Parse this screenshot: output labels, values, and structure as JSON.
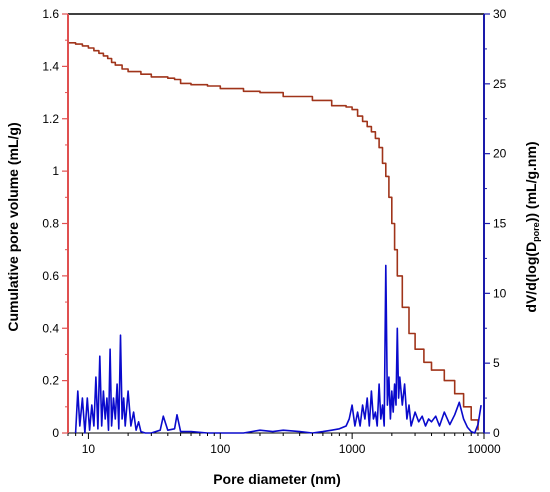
{
  "chart_data": {
    "type": "line",
    "xlabel": "Pore diameter (nm)",
    "x_scale": "log",
    "xlim": [
      7,
      10000
    ],
    "x_ticks": [
      10,
      100,
      1000,
      10000
    ],
    "x_tick_labels": [
      "10",
      "100",
      "1000",
      "10000"
    ],
    "left_axis": {
      "label": "Cumulative pore volume (mL/g)",
      "ylim": [
        0,
        1.6
      ],
      "ticks": [
        0,
        0.2,
        0.4,
        0.6,
        0.8,
        1,
        1.2,
        1.4,
        1.6
      ],
      "tick_labels": [
        "0",
        "0.2",
        "0.4",
        "0.6",
        "0.8",
        "1",
        "1.2",
        "1.4",
        "1.6"
      ],
      "color": "#e05050"
    },
    "right_axis": {
      "label_prefix": "dV/d(log(D",
      "label_sub": "pore",
      "label_suffix": ")) (mL/g.nm)",
      "ylim": [
        0,
        30
      ],
      "ticks": [
        0,
        5,
        10,
        15,
        20,
        25,
        30
      ],
      "tick_labels": [
        "0",
        "5",
        "10",
        "15",
        "20",
        "25",
        "30"
      ],
      "color": "#1a1aaa"
    },
    "grid": false,
    "series": [
      {
        "axis": "left",
        "color": "#a0341a",
        "x": [
          7,
          8,
          9,
          10,
          11,
          12,
          13,
          14,
          15,
          16,
          18,
          20,
          25,
          30,
          40,
          45,
          50,
          60,
          80,
          100,
          150,
          200,
          300,
          500,
          700,
          900,
          1000,
          1100,
          1200,
          1300,
          1400,
          1500,
          1600,
          1700,
          1800,
          1900,
          2000,
          2100,
          2200,
          2400,
          2700,
          3000,
          3500,
          4000,
          5000,
          6000,
          7000,
          8000,
          9000
        ],
        "y": [
          1.49,
          1.485,
          1.478,
          1.47,
          1.46,
          1.45,
          1.44,
          1.43,
          1.415,
          1.405,
          1.39,
          1.38,
          1.37,
          1.36,
          1.355,
          1.35,
          1.335,
          1.33,
          1.325,
          1.315,
          1.305,
          1.3,
          1.285,
          1.27,
          1.25,
          1.245,
          1.235,
          1.21,
          1.19,
          1.17,
          1.15,
          1.125,
          1.09,
          1.03,
          0.98,
          0.9,
          0.8,
          0.7,
          0.6,
          0.48,
          0.38,
          0.32,
          0.27,
          0.24,
          0.2,
          0.15,
          0.1,
          0.05,
          0.01
        ]
      },
      {
        "axis": "right",
        "color": "#0a0acc",
        "x": [
          8,
          8.3,
          8.6,
          9,
          9.4,
          9.8,
          10.2,
          10.6,
          11,
          11.4,
          11.8,
          12.2,
          12.6,
          13,
          13.4,
          13.8,
          14.2,
          14.6,
          15,
          15.5,
          16,
          16.5,
          17,
          17.5,
          18,
          18.5,
          19,
          20,
          21,
          22,
          23,
          24,
          25,
          27,
          30,
          35,
          37,
          40,
          45,
          47,
          50,
          60,
          80,
          100,
          150,
          200,
          250,
          300,
          400,
          500,
          600,
          700,
          800,
          900,
          950,
          1000,
          1050,
          1100,
          1150,
          1200,
          1250,
          1300,
          1350,
          1400,
          1450,
          1500,
          1550,
          1600,
          1650,
          1700,
          1750,
          1800,
          1850,
          1900,
          1950,
          2000,
          2050,
          2100,
          2150,
          2200,
          2250,
          2300,
          2400,
          2500,
          2600,
          2700,
          2800,
          3000,
          3200,
          3400,
          3600,
          3800,
          4000,
          4300,
          4600,
          5000,
          5500,
          6000,
          6500,
          7000,
          7500,
          8000,
          8500,
          9000,
          9500
        ],
        "y": [
          0,
          3,
          0.5,
          2.5,
          0,
          2.5,
          0.2,
          2,
          0.5,
          4,
          0.3,
          5.5,
          0.5,
          3,
          1,
          2.5,
          0.2,
          6,
          0.5,
          2.5,
          1,
          3.5,
          0.3,
          7,
          1,
          2.5,
          0.5,
          3,
          0.5,
          1.5,
          0.2,
          0.8,
          0.1,
          0,
          0,
          0.2,
          1.2,
          0.2,
          0.3,
          1.3,
          0.1,
          0.1,
          0,
          0,
          0,
          0.2,
          0.1,
          0.2,
          0.1,
          0,
          0.1,
          0.2,
          0.3,
          0.5,
          1,
          2,
          0.5,
          1.5,
          0.5,
          2,
          1,
          2.5,
          0.5,
          3,
          1,
          1.5,
          0.5,
          3.5,
          1,
          2,
          0.5,
          12,
          2,
          4,
          1,
          3,
          1.5,
          3.5,
          2,
          7.5,
          2.5,
          4,
          2,
          3.5,
          1,
          2,
          0.5,
          1.5,
          0.8,
          1.2,
          0.5,
          1,
          0.8,
          1.2,
          0.5,
          1.5,
          0.6,
          1.3,
          2.2,
          1,
          0.4,
          0.1,
          0,
          0.6,
          2
        ]
      }
    ]
  }
}
